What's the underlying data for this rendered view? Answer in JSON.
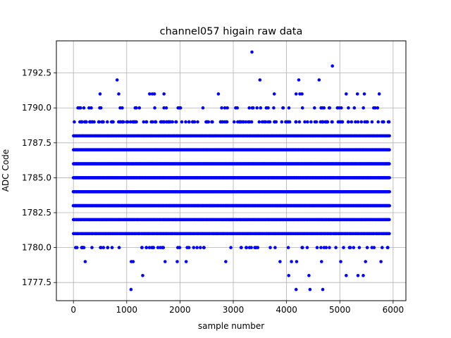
{
  "chart_data": {
    "type": "scatter",
    "title": "channel057 higain raw data",
    "xlabel": "sample number",
    "ylabel": "ADC Code",
    "xlim": [
      -320,
      6240
    ],
    "ylim": [
      1776.2,
      1794.8
    ],
    "xticks": [
      0,
      1000,
      2000,
      3000,
      4000,
      5000,
      6000
    ],
    "yticks": [
      1777.5,
      1780.0,
      1782.5,
      1785.0,
      1787.5,
      1790.0,
      1792.5
    ],
    "xtick_labels": [
      "0",
      "1000",
      "2000",
      "3000",
      "4000",
      "5000",
      "6000"
    ],
    "ytick_labels": [
      "1777.5",
      "1780.0",
      "1782.5",
      "1785.0",
      "1787.5",
      "1790.0",
      "1792.5"
    ],
    "grid": true,
    "marker_color": "#0000ff",
    "x_range": [
      0,
      5930
    ],
    "dense_levels": [
      1781,
      1782,
      1783,
      1784,
      1785,
      1786,
      1787,
      1788
    ],
    "level_point_counts": {
      "1781": 230,
      "1782": 360,
      "1783": 520,
      "1784": 560,
      "1785": 560,
      "1786": 520,
      "1787": 430,
      "1788": 300,
      "1789": 150,
      "1790": 55,
      "1780": 70,
      "1779": 14
    },
    "sparse_points": [
      {
        "x": 1080,
        "y": 1777
      },
      {
        "x": 1300,
        "y": 1778
      },
      {
        "x": 4040,
        "y": 1778
      },
      {
        "x": 4180,
        "y": 1777
      },
      {
        "x": 4420,
        "y": 1778
      },
      {
        "x": 4440,
        "y": 1777
      },
      {
        "x": 4680,
        "y": 1777
      },
      {
        "x": 5120,
        "y": 1778
      },
      {
        "x": 5340,
        "y": 1778
      },
      {
        "x": 5440,
        "y": 1778
      },
      {
        "x": 500,
        "y": 1791
      },
      {
        "x": 850,
        "y": 1791
      },
      {
        "x": 1430,
        "y": 1791
      },
      {
        "x": 1480,
        "y": 1791
      },
      {
        "x": 1520,
        "y": 1791
      },
      {
        "x": 1700,
        "y": 1791
      },
      {
        "x": 2720,
        "y": 1791
      },
      {
        "x": 3770,
        "y": 1791
      },
      {
        "x": 4180,
        "y": 1791
      },
      {
        "x": 4250,
        "y": 1791
      },
      {
        "x": 4290,
        "y": 1791
      },
      {
        "x": 5120,
        "y": 1791
      },
      {
        "x": 5330,
        "y": 1791
      },
      {
        "x": 5460,
        "y": 1791
      },
      {
        "x": 5740,
        "y": 1791
      },
      {
        "x": 820,
        "y": 1792
      },
      {
        "x": 3500,
        "y": 1792
      },
      {
        "x": 4230,
        "y": 1792
      },
      {
        "x": 4610,
        "y": 1792
      },
      {
        "x": 3350,
        "y": 1794
      },
      {
        "x": 4860,
        "y": 1793
      }
    ]
  }
}
